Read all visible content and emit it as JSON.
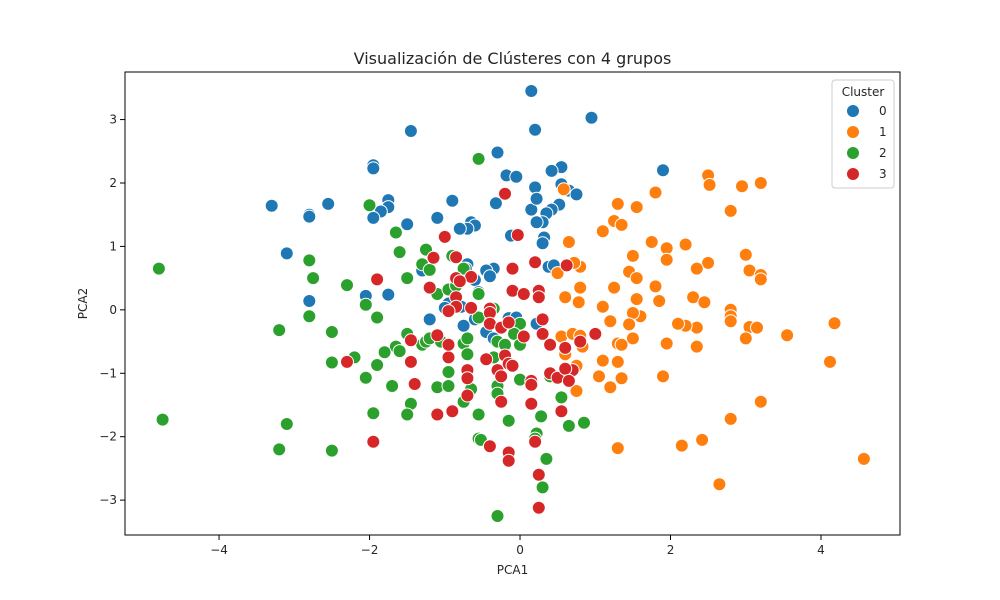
{
  "chart_data": {
    "type": "scatter",
    "title": "Visualización de Clústeres con 4 grupos",
    "xlabel": "PCA1",
    "ylabel": "PCA2",
    "xlim": [
      -5.25,
      5.05
    ],
    "ylim": [
      -3.55,
      3.75
    ],
    "xticks": [
      -4,
      -2,
      0,
      2,
      4
    ],
    "yticks": [
      -3,
      -2,
      -1,
      0,
      1,
      2,
      3
    ],
    "grid": false,
    "legend": {
      "title": "Cluster",
      "placement": "top-right"
    },
    "series": [
      {
        "name": "0",
        "color": "#1f77b4",
        "points": [
          [
            0.15,
            3.45
          ],
          [
            0.95,
            3.03
          ],
          [
            -1.45,
            2.82
          ],
          [
            0.2,
            2.84
          ],
          [
            -0.3,
            2.48
          ],
          [
            -1.95,
            2.28
          ],
          [
            -1.95,
            2.23
          ],
          [
            1.9,
            2.2
          ],
          [
            0.55,
            2.25
          ],
          [
            0.42,
            2.19
          ],
          [
            -0.18,
            2.12
          ],
          [
            -0.05,
            2.1
          ],
          [
            0.2,
            1.93
          ],
          [
            0.55,
            1.98
          ],
          [
            0.65,
            1.88
          ],
          [
            0.75,
            1.82
          ],
          [
            0.52,
            1.66
          ],
          [
            0.42,
            1.58
          ],
          [
            0.15,
            1.58
          ],
          [
            0.22,
            1.75
          ],
          [
            0.35,
            1.52
          ],
          [
            -0.32,
            1.68
          ],
          [
            -0.9,
            1.72
          ],
          [
            -3.3,
            1.64
          ],
          [
            -2.55,
            1.67
          ],
          [
            -2.8,
            1.5
          ],
          [
            -2.8,
            1.47
          ],
          [
            -1.75,
            1.73
          ],
          [
            -1.75,
            1.62
          ],
          [
            -1.85,
            1.55
          ],
          [
            -1.95,
            1.45
          ],
          [
            -1.1,
            1.45
          ],
          [
            -0.65,
            1.38
          ],
          [
            -0.6,
            1.33
          ],
          [
            -0.7,
            1.28
          ],
          [
            -0.8,
            1.28
          ],
          [
            -1.5,
            1.35
          ],
          [
            -1.65,
            1.21
          ],
          [
            0.3,
            1.38
          ],
          [
            0.22,
            1.38
          ],
          [
            -0.12,
            1.17
          ],
          [
            0.32,
            1.14
          ],
          [
            0.3,
            1.05
          ],
          [
            -3.1,
            0.89
          ],
          [
            -0.35,
            0.65
          ],
          [
            -0.7,
            0.72
          ],
          [
            -0.72,
            0.65
          ],
          [
            -0.45,
            0.62
          ],
          [
            -1.3,
            0.62
          ],
          [
            -0.4,
            0.53
          ],
          [
            -0.6,
            0.47
          ],
          [
            0.38,
            0.68
          ],
          [
            0.45,
            0.7
          ],
          [
            -1.75,
            0.24
          ],
          [
            -2.8,
            0.14
          ],
          [
            -2.05,
            0.22
          ],
          [
            -0.85,
            0.38
          ],
          [
            -0.55,
            0.28
          ],
          [
            -0.78,
            0.05
          ],
          [
            -0.75,
            -0.25
          ],
          [
            -1.2,
            -0.15
          ],
          [
            -0.95,
            0.1
          ],
          [
            -1.0,
            0.03
          ],
          [
            -0.6,
            -0.1
          ],
          [
            -0.15,
            -0.13
          ],
          [
            -0.05,
            -0.12
          ],
          [
            0.22,
            -0.22
          ],
          [
            -0.6,
            -0.15
          ],
          [
            -0.45,
            -0.35
          ],
          [
            -0.35,
            -0.45
          ]
        ]
      },
      {
        "name": "1",
        "color": "#ff7f0e",
        "points": [
          [
            2.5,
            2.12
          ],
          [
            2.52,
            1.97
          ],
          [
            3.2,
            2.0
          ],
          [
            2.95,
            1.95
          ],
          [
            0.58,
            1.9
          ],
          [
            1.8,
            1.85
          ],
          [
            1.3,
            1.67
          ],
          [
            2.8,
            1.56
          ],
          [
            1.55,
            1.62
          ],
          [
            1.25,
            1.4
          ],
          [
            1.35,
            1.34
          ],
          [
            1.1,
            1.24
          ],
          [
            0.65,
            1.07
          ],
          [
            1.75,
            1.07
          ],
          [
            2.2,
            1.03
          ],
          [
            1.95,
            0.97
          ],
          [
            1.95,
            0.79
          ],
          [
            3.0,
            0.87
          ],
          [
            2.5,
            0.74
          ],
          [
            1.5,
            0.85
          ],
          [
            2.35,
            0.65
          ],
          [
            1.45,
            0.6
          ],
          [
            1.55,
            0.5
          ],
          [
            0.8,
            0.68
          ],
          [
            0.72,
            0.74
          ],
          [
            0.5,
            0.58
          ],
          [
            3.05,
            0.62
          ],
          [
            3.2,
            0.55
          ],
          [
            3.2,
            0.48
          ],
          [
            1.8,
            0.37
          ],
          [
            1.25,
            0.35
          ],
          [
            0.8,
            0.35
          ],
          [
            0.6,
            0.2
          ],
          [
            0.78,
            0.12
          ],
          [
            1.1,
            0.05
          ],
          [
            1.55,
            0.17
          ],
          [
            1.85,
            0.14
          ],
          [
            2.3,
            0.2
          ],
          [
            2.45,
            0.12
          ],
          [
            2.8,
            0.0
          ],
          [
            2.8,
            -0.1
          ],
          [
            2.8,
            -0.18
          ],
          [
            2.35,
            -0.28
          ],
          [
            2.2,
            -0.25
          ],
          [
            2.1,
            -0.22
          ],
          [
            1.6,
            -0.1
          ],
          [
            1.5,
            -0.05
          ],
          [
            1.45,
            -0.23
          ],
          [
            1.2,
            -0.18
          ],
          [
            1.3,
            -0.53
          ],
          [
            1.35,
            -0.55
          ],
          [
            1.5,
            -0.45
          ],
          [
            1.95,
            -0.53
          ],
          [
            2.35,
            -0.58
          ],
          [
            3.05,
            -0.27
          ],
          [
            3.15,
            -0.28
          ],
          [
            3.0,
            -0.45
          ],
          [
            3.55,
            -0.4
          ],
          [
            4.18,
            -0.21
          ],
          [
            4.12,
            -0.82
          ],
          [
            4.57,
            -2.35
          ],
          [
            0.55,
            -0.42
          ],
          [
            0.7,
            -0.38
          ],
          [
            0.8,
            -0.41
          ],
          [
            0.83,
            -0.58
          ],
          [
            0.6,
            -0.7
          ],
          [
            0.75,
            -0.88
          ],
          [
            1.1,
            -0.8
          ],
          [
            1.3,
            -0.82
          ],
          [
            1.35,
            -1.08
          ],
          [
            1.05,
            -1.05
          ],
          [
            1.2,
            -1.22
          ],
          [
            0.75,
            -1.28
          ],
          [
            1.9,
            -1.05
          ],
          [
            3.2,
            -1.45
          ],
          [
            2.8,
            -1.72
          ],
          [
            2.15,
            -2.14
          ],
          [
            2.42,
            -2.05
          ],
          [
            1.3,
            -2.18
          ],
          [
            2.65,
            -2.75
          ]
        ]
      },
      {
        "name": "2",
        "color": "#2ca02c",
        "points": [
          [
            -4.8,
            0.65
          ],
          [
            -4.75,
            -1.73
          ],
          [
            -3.2,
            -0.32
          ],
          [
            -3.2,
            -2.2
          ],
          [
            -3.1,
            -1.8
          ],
          [
            -2.5,
            -2.22
          ],
          [
            -2.8,
            0.78
          ],
          [
            -2.75,
            0.5
          ],
          [
            -2.8,
            -0.1
          ],
          [
            -2.5,
            -0.35
          ],
          [
            -2.3,
            0.39
          ],
          [
            -2.05,
            0.08
          ],
          [
            -2.0,
            1.65
          ],
          [
            -1.65,
            1.22
          ],
          [
            -1.6,
            0.91
          ],
          [
            -1.5,
            0.5
          ],
          [
            -1.3,
            0.72
          ],
          [
            -1.25,
            0.95
          ],
          [
            -1.2,
            0.63
          ],
          [
            -1.1,
            0.25
          ],
          [
            -0.95,
            0.32
          ],
          [
            -0.9,
            0.85
          ],
          [
            -0.75,
            0.65
          ],
          [
            -0.85,
            0.38
          ],
          [
            -0.55,
            0.25
          ],
          [
            -0.55,
            2.38
          ],
          [
            -2.2,
            -0.75
          ],
          [
            -1.9,
            -0.12
          ],
          [
            -1.5,
            -0.38
          ],
          [
            -1.65,
            -0.58
          ],
          [
            -1.6,
            -0.65
          ],
          [
            -1.8,
            -0.67
          ],
          [
            -1.3,
            -0.55
          ],
          [
            -1.25,
            -0.5
          ],
          [
            -1.2,
            -0.45
          ],
          [
            -1.05,
            -0.5
          ],
          [
            -0.75,
            -0.53
          ],
          [
            -0.7,
            -0.7
          ],
          [
            -0.7,
            -0.45
          ],
          [
            -0.55,
            -0.12
          ],
          [
            -0.35,
            0.02
          ],
          [
            -0.3,
            -0.5
          ],
          [
            -0.35,
            -0.75
          ],
          [
            -0.2,
            -0.55
          ],
          [
            0.0,
            -0.22
          ],
          [
            -0.08,
            -0.38
          ],
          [
            0.0,
            -0.55
          ],
          [
            -1.9,
            -0.87
          ],
          [
            -2.05,
            -1.07
          ],
          [
            -2.5,
            -0.83
          ],
          [
            -1.7,
            -1.2
          ],
          [
            -1.1,
            -1.22
          ],
          [
            -0.95,
            -0.98
          ],
          [
            -0.95,
            -1.2
          ],
          [
            -0.75,
            -1.45
          ],
          [
            -0.65,
            -1.25
          ],
          [
            -0.3,
            -1.2
          ],
          [
            -0.3,
            -1.32
          ],
          [
            0.0,
            -1.1
          ],
          [
            0.4,
            -1.05
          ],
          [
            0.55,
            -1.38
          ],
          [
            -1.45,
            -1.48
          ],
          [
            -1.5,
            -1.65
          ],
          [
            -1.95,
            -1.63
          ],
          [
            -0.55,
            -1.65
          ],
          [
            -0.15,
            -1.75
          ],
          [
            0.28,
            -1.68
          ],
          [
            0.65,
            -1.83
          ],
          [
            0.85,
            -1.78
          ],
          [
            0.22,
            -1.95
          ],
          [
            -0.55,
            -2.03
          ],
          [
            -0.52,
            -2.05
          ],
          [
            0.2,
            -2.03
          ],
          [
            0.35,
            -2.35
          ],
          [
            0.3,
            -2.8
          ],
          [
            -0.3,
            -3.25
          ]
        ]
      },
      {
        "name": "3",
        "color": "#d62728",
        "points": [
          [
            -0.2,
            1.83
          ],
          [
            -0.03,
            1.18
          ],
          [
            -1.0,
            1.15
          ],
          [
            -1.15,
            0.82
          ],
          [
            -0.85,
            0.83
          ],
          [
            -1.9,
            0.48
          ],
          [
            -0.85,
            0.5
          ],
          [
            -0.65,
            0.52
          ],
          [
            -1.2,
            0.35
          ],
          [
            -0.8,
            0.45
          ],
          [
            -0.85,
            0.2
          ],
          [
            -0.85,
            0.05
          ],
          [
            -0.95,
            -0.02
          ],
          [
            -0.65,
            0.03
          ],
          [
            -0.4,
            0.02
          ],
          [
            -0.4,
            -0.05
          ],
          [
            -0.4,
            -0.22
          ],
          [
            -0.25,
            -0.28
          ],
          [
            -0.1,
            0.65
          ],
          [
            0.2,
            0.75
          ],
          [
            0.62,
            0.7
          ],
          [
            -0.1,
            0.3
          ],
          [
            0.05,
            0.25
          ],
          [
            0.25,
            0.3
          ],
          [
            0.25,
            0.2
          ],
          [
            0.3,
            -0.15
          ],
          [
            -0.15,
            -0.2
          ],
          [
            0.05,
            -0.42
          ],
          [
            0.3,
            -0.38
          ],
          [
            0.4,
            -0.55
          ],
          [
            -1.1,
            -0.4
          ],
          [
            -1.45,
            -0.48
          ],
          [
            -1.45,
            -0.82
          ],
          [
            -0.95,
            -0.75
          ],
          [
            -0.95,
            -0.55
          ],
          [
            -0.7,
            -0.95
          ],
          [
            -0.7,
            -1.08
          ],
          [
            -0.7,
            -1.35
          ],
          [
            -0.45,
            -0.78
          ],
          [
            -0.3,
            -0.95
          ],
          [
            -0.2,
            -0.72
          ],
          [
            -0.15,
            -0.85
          ],
          [
            -0.1,
            -0.88
          ],
          [
            -0.25,
            -1.05
          ],
          [
            0.15,
            -1.12
          ],
          [
            0.4,
            -1.0
          ],
          [
            0.5,
            -1.07
          ],
          [
            0.7,
            -0.95
          ],
          [
            0.6,
            -0.93
          ],
          [
            0.65,
            -1.12
          ],
          [
            0.6,
            -0.6
          ],
          [
            0.8,
            -0.5
          ],
          [
            1.0,
            -0.38
          ],
          [
            -2.3,
            -0.82
          ],
          [
            -1.4,
            -1.17
          ],
          [
            -1.1,
            -1.65
          ],
          [
            -0.9,
            -1.6
          ],
          [
            -0.25,
            -1.45
          ],
          [
            0.15,
            -1.48
          ],
          [
            0.55,
            -1.6
          ],
          [
            -1.95,
            -2.08
          ],
          [
            -0.4,
            -2.15
          ],
          [
            0.2,
            -2.08
          ],
          [
            -0.15,
            -2.25
          ],
          [
            -0.15,
            -2.38
          ],
          [
            0.25,
            -2.6
          ],
          [
            0.25,
            -3.12
          ],
          [
            0.15,
            -1.18
          ]
        ]
      }
    ]
  }
}
